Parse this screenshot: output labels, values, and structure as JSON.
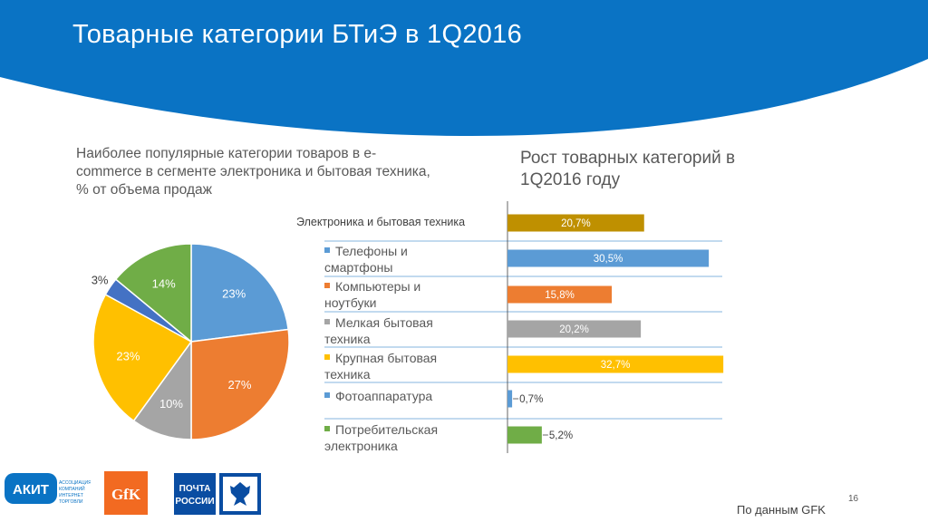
{
  "slide": {
    "title": "Товарные категории БТиЭ в 1Q2016",
    "page_number": "16",
    "source": "По данным GFK",
    "header_color": "#0A73C4"
  },
  "left_chart": {
    "subtitle": "Наиболее популярные категории товаров в e-commerce в сегменте электроника и бытовая техника, % от объема продаж"
  },
  "right_chart": {
    "subtitle": "Рост товарных категорий в 1Q2016 году",
    "header_label": "Электроника и бытовая техника",
    "categories": [
      "Телефоны и смартфоны",
      "Компьютеры и ноутбуки",
      "Мелкая бытовая техника",
      "Крупная бытовая техника",
      "Фотоаппаратура",
      "Потребительская электроника"
    ]
  },
  "logos": {
    "akit": "АКИТ",
    "akit_sub": "АССОЦИАЦИЯ КОМПАНИЙ ИНТЕРНЕТ ТОРГОВЛИ",
    "gfk": "GfK",
    "pochta_1": "ПОЧТА",
    "pochta_2": "РОССИИ"
  },
  "chart_data": [
    {
      "type": "pie",
      "title": "Наиболее популярные категории товаров в e-commerce в сегменте электроника и бытовая техника, % от объема продаж",
      "categories": [
        "Телефоны и смартфоны",
        "Компьютеры и ноутбуки",
        "Мелкая бытовая техника",
        "Крупная бытовая техника",
        "Фотоаппаратура",
        "Потребительская электроника"
      ],
      "values": [
        23,
        27,
        10,
        23,
        3,
        14
      ],
      "labels": [
        "23%",
        "27%",
        "10%",
        "23%",
        "3%",
        "14%"
      ],
      "colors": [
        "#5B9BD5",
        "#ED7D31",
        "#A5A5A5",
        "#FFC000",
        "#4472C4",
        "#70AD47"
      ]
    },
    {
      "type": "bar",
      "orientation": "horizontal",
      "title": "Рост товарных категорий в 1Q2016 году",
      "categories": [
        "Электроника и бытовая техника",
        "Телефоны и смартфоны",
        "Компьютеры и ноутбуки",
        "Мелкая бытовая техника",
        "Крупная бытовая техника",
        "Фотоаппаратура",
        "Потребительская электроника"
      ],
      "values": [
        20.7,
        30.5,
        15.8,
        20.2,
        32.7,
        0.7,
        5.2
      ],
      "labels": [
        "20,7%",
        "30,5%",
        "15,8%",
        "20,2%",
        "32,7%",
        "0,7%",
        "5,2%"
      ],
      "colors": [
        "#BF9000",
        "#5B9BD5",
        "#ED7D31",
        "#A5A5A5",
        "#FFC000",
        "#5B9BD5",
        "#70AD47"
      ],
      "xlim": [
        0,
        33
      ],
      "grid": true
    }
  ]
}
